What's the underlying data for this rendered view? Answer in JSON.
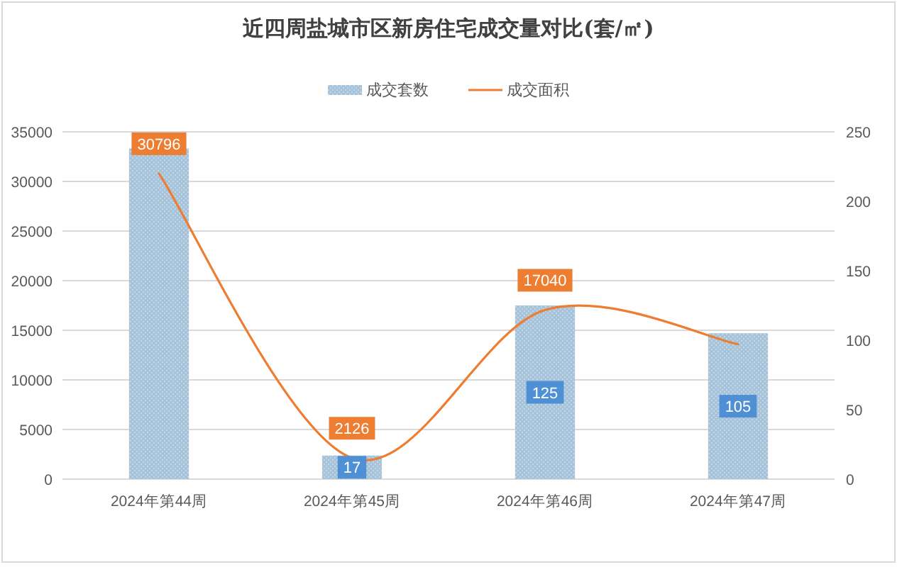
{
  "chart_data": {
    "type": "bar",
    "title": "近四周盐城市区新房住宅成交量对比(套/㎡)",
    "categories": [
      "2024年第44周",
      "2024年第45周",
      "2024年第46周",
      "2024年第47周"
    ],
    "series": [
      {
        "name": "成交套数",
        "axis": "y2",
        "color": "#a6c3da",
        "values": [
          238,
          17,
          125,
          105
        ],
        "value_labels": [
          null,
          "17",
          "125",
          "105"
        ]
      },
      {
        "name": "成交面积",
        "type": "line",
        "color": "#ed7d31",
        "values": [
          30796,
          2126,
          17040,
          13600
        ],
        "value_labels": [
          "30796",
          "2126",
          "17040",
          null
        ]
      }
    ],
    "ylim": [
      0,
      35000
    ],
    "yticks": [
      0,
      5000,
      10000,
      15000,
      20000,
      25000,
      30000,
      35000
    ],
    "y2lim": [
      0,
      250
    ],
    "y2ticks": [
      0,
      50,
      100,
      150,
      200,
      250
    ],
    "grid": "y",
    "legend": "top"
  }
}
